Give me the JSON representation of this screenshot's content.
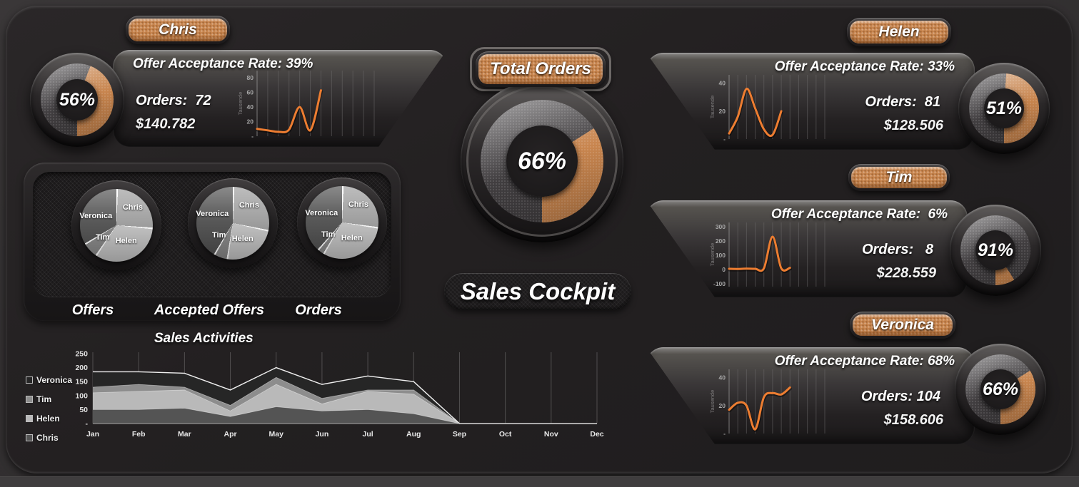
{
  "title": "Sales Cockpit",
  "center": {
    "badge_label": "Total Orders",
    "gauge_pct": "66%"
  },
  "panels": [
    {
      "name": "Chris",
      "rate": "Offer Acceptance Rate: 39%",
      "orders": "Orders:  72",
      "amount": "$140.782",
      "gauge_pct": "56%",
      "gauge_id": "gauge-chris",
      "spark_id": "spark-chris"
    },
    {
      "name": "Helen",
      "rate": "Offer Acceptance Rate: 33%",
      "orders": "Orders:  81",
      "amount": "$128.506",
      "gauge_pct": "51%",
      "gauge_id": "gauge-helen",
      "spark_id": "spark-helen"
    },
    {
      "name": "Tim",
      "rate": "Offer Acceptance Rate:  6%",
      "orders": "Orders:   8",
      "amount": "$228.559",
      "gauge_pct": "91%",
      "gauge_id": "gauge-tim",
      "spark_id": "spark-tim"
    },
    {
      "name": "Veronica",
      "rate": "Offer Acceptance Rate: 68%",
      "orders": "Orders: 104",
      "amount": "$158.606",
      "gauge_pct": "66%",
      "gauge_id": "gauge-veronica",
      "spark_id": "spark-veronica"
    }
  ],
  "colors": {
    "accent_orange": "#ED7D31",
    "copper": "#C8854E",
    "gauge_track": "#413E40",
    "frame": "#232021",
    "outer_bg": "#343132",
    "bottom_bar": "#3F3D3E",
    "pie_slices": [
      "#9B9B9B",
      "#C2C2C2",
      "#858585",
      "#4E4E4E"
    ],
    "tick_text": "#A8A8A8"
  },
  "chart_data": [
    {
      "id": "gauge-total",
      "type": "gauge",
      "title": "Total Orders",
      "value": 66,
      "label": "66%"
    },
    {
      "id": "gauge-chris",
      "type": "gauge",
      "title": "Chris",
      "value": 56,
      "label": "56%"
    },
    {
      "id": "gauge-helen",
      "type": "gauge",
      "title": "Helen",
      "value": 51,
      "label": "51%"
    },
    {
      "id": "gauge-tim",
      "type": "gauge",
      "title": "Tim",
      "value": 91,
      "label": "91%"
    },
    {
      "id": "gauge-veronica",
      "type": "gauge",
      "title": "Veronica",
      "value": 66,
      "label": "66%"
    },
    {
      "id": "pie-offers",
      "type": "pie",
      "title": "Offers",
      "labels": [
        "Chris",
        "Helen",
        "Tim",
        "Veronica"
      ],
      "values": [
        26,
        33,
        7,
        34
      ]
    },
    {
      "id": "pie-accepted",
      "type": "pie",
      "title": "Accepted Offers",
      "labels": [
        "Chris",
        "Helen",
        "Tim",
        "Veronica"
      ],
      "values": [
        28,
        24,
        6,
        42
      ]
    },
    {
      "id": "pie-orders",
      "type": "pie",
      "title": "Orders",
      "labels": [
        "Chris",
        "Helen",
        "Tim",
        "Veronica"
      ],
      "values": [
        27,
        31,
        3,
        39
      ]
    },
    {
      "id": "spark-chris",
      "type": "line",
      "unit": "Tausende",
      "y_ticks": [
        [
          80,
          "80"
        ],
        [
          60,
          "60"
        ],
        [
          40,
          "40"
        ],
        [
          20,
          "20"
        ],
        [
          0,
          "-"
        ]
      ],
      "y_range": [
        0,
        90
      ],
      "slots": 12,
      "values": [
        10,
        8,
        6,
        9,
        40,
        8,
        63
      ]
    },
    {
      "id": "spark-helen",
      "type": "line",
      "unit": "Tausende",
      "y_ticks": [
        [
          40,
          "40"
        ],
        [
          20,
          "20"
        ],
        [
          0,
          "-"
        ]
      ],
      "y_range": [
        0,
        46
      ],
      "slots": 12,
      "values": [
        4,
        16,
        36,
        22,
        7,
        3,
        20
      ]
    },
    {
      "id": "spark-tim",
      "type": "line",
      "unit": "Tausende",
      "y_ticks": [
        [
          300,
          "300"
        ],
        [
          200,
          "200"
        ],
        [
          100,
          "100"
        ],
        [
          0,
          "0"
        ],
        [
          -100,
          "-100"
        ]
      ],
      "y_range": [
        -120,
        330
      ],
      "slots": 12,
      "values": [
        5,
        4,
        6,
        5,
        8,
        230,
        8,
        12
      ]
    },
    {
      "id": "spark-veronica",
      "type": "line",
      "unit": "Tausende",
      "y_ticks": [
        [
          40,
          "40"
        ],
        [
          20,
          "20"
        ],
        [
          0,
          "-"
        ]
      ],
      "y_range": [
        0,
        46
      ],
      "slots": 12,
      "values": [
        17,
        22,
        20,
        3,
        26,
        29,
        28,
        33
      ]
    },
    {
      "id": "area-sales",
      "type": "area",
      "title": "Sales Activities",
      "categories": [
        "Jan",
        "Feb",
        "Mar",
        "Apr",
        "May",
        "Jun",
        "Jul",
        "Aug",
        "Sep",
        "Oct",
        "Nov",
        "Dec"
      ],
      "y_ticks": [
        [
          250,
          "250"
        ],
        [
          200,
          "200"
        ],
        [
          150,
          "150"
        ],
        [
          100,
          "100"
        ],
        [
          50,
          "50"
        ],
        [
          0,
          "-"
        ]
      ],
      "ylim": [
        0,
        255
      ],
      "grid": "vertical",
      "legend_position": "left",
      "series": [
        {
          "name": "Chris",
          "color": "#545454",
          "values": [
            50,
            50,
            55,
            25,
            60,
            45,
            50,
            35,
            0,
            0,
            0,
            0
          ]
        },
        {
          "name": "Helen",
          "color": "#B9B9B9",
          "values": [
            60,
            65,
            65,
            20,
            80,
            25,
            65,
            70,
            0,
            0,
            0,
            0
          ]
        },
        {
          "name": "Tim",
          "color": "#8D8D8D",
          "values": [
            20,
            25,
            10,
            20,
            25,
            20,
            5,
            15,
            0,
            0,
            0,
            0
          ]
        },
        {
          "name": "Veronica",
          "color": "#262626",
          "values": [
            55,
            45,
            50,
            55,
            35,
            50,
            50,
            30,
            0,
            0,
            0,
            0
          ]
        }
      ],
      "legend": [
        {
          "name": "Veronica",
          "swatch": "#262626"
        },
        {
          "name": "Tim",
          "swatch": "#8D8D8D"
        },
        {
          "name": "Helen",
          "swatch": "#B9B9B9"
        },
        {
          "name": "Chris",
          "swatch": "#545454"
        }
      ]
    }
  ]
}
